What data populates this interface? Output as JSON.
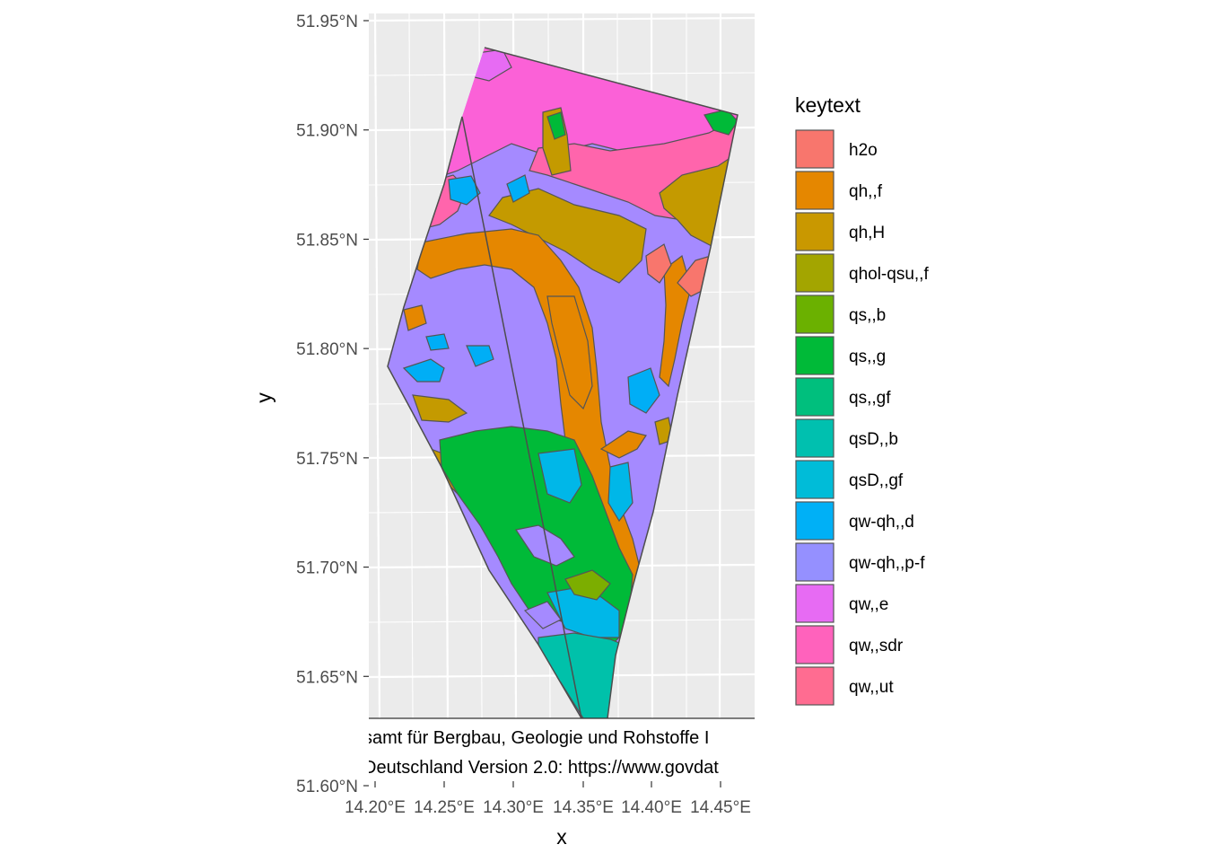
{
  "chart_data": {
    "type": "map",
    "xlabel": "x",
    "ylabel": "y",
    "x_ticks": [
      "14.20°E",
      "14.25°E",
      "14.30°E",
      "14.35°E",
      "14.40°E",
      "14.45°E"
    ],
    "y_ticks": [
      "51.95°N",
      "51.90°N",
      "51.85°N",
      "51.80°N",
      "51.75°N",
      "51.70°N",
      "51.65°N",
      "51.60°N"
    ],
    "x_range": [
      14.185,
      14.47
    ],
    "y_range": [
      51.6,
      51.955
    ],
    "grid": true,
    "legend": {
      "title": "keytext",
      "position": "right",
      "entries": [
        {
          "label": "h2o",
          "color": "#F8766D"
        },
        {
          "label": "qh,,f",
          "color": "#E58700"
        },
        {
          "label": "qh,H",
          "color": "#C99800"
        },
        {
          "label": "qhol-qsu,,f",
          "color": "#A3A500"
        },
        {
          "label": "qs,,b",
          "color": "#6BB100"
        },
        {
          "label": "qs,,g",
          "color": "#00BA38"
        },
        {
          "label": "qs,,gf",
          "color": "#00BF7D"
        },
        {
          "label": "qsD,,b",
          "color": "#00C0AF"
        },
        {
          "label": "qsD,,gf",
          "color": "#00BCD8"
        },
        {
          "label": "qw-qh,,d",
          "color": "#00B0F6"
        },
        {
          "label": "qw-qh,,p-f",
          "color": "#9590FF"
        },
        {
          "label": "qw,,e",
          "color": "#E76BF3"
        },
        {
          "label": "qw,,sdr",
          "color": "#FF62BC"
        },
        {
          "label": "qw,,ut",
          "color": "#FF6C91"
        }
      ]
    },
    "caption_lines": [
      "samt für Bergbau, Geologie und Rohstoffe I",
      "Deutschland Version 2.0: https://www.govdat"
    ]
  }
}
